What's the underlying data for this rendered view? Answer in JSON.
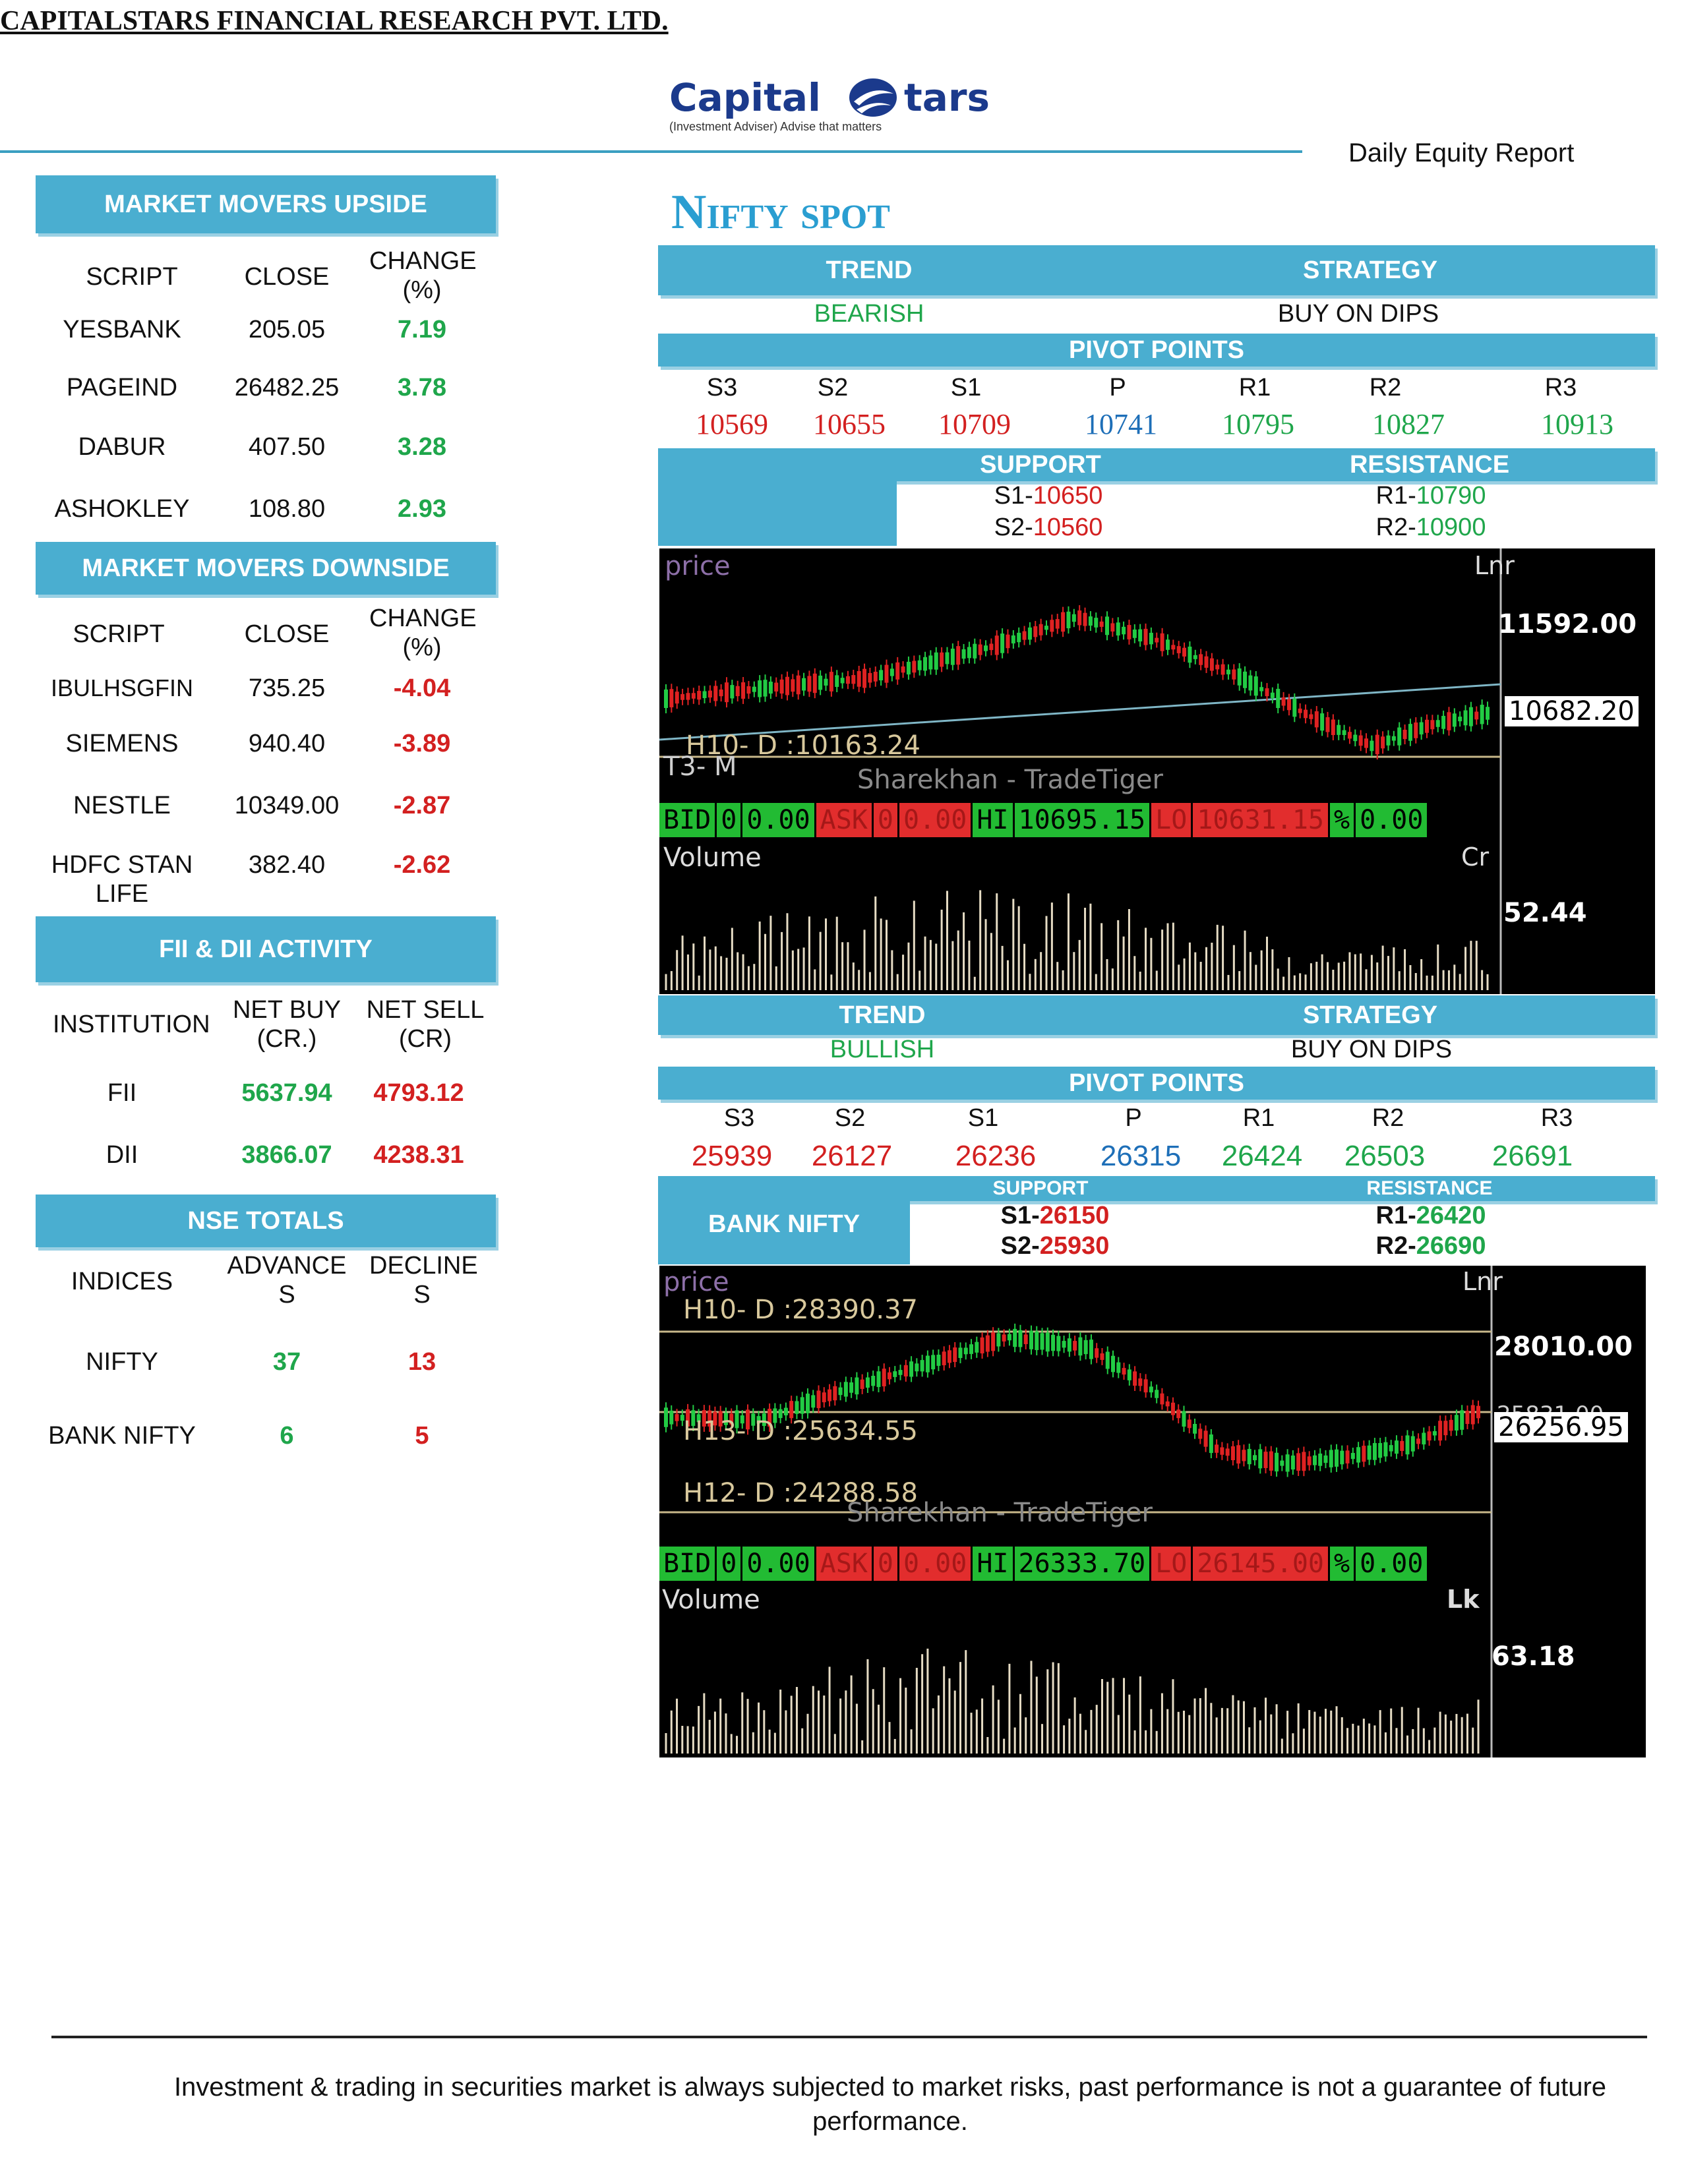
{
  "header": {
    "company": "CAPITALSTARS FINANCIAL RESEARCH PVT. LTD.",
    "logo_word_a": "Capital",
    "logo_word_b": "tars",
    "logo_tagline": "(Investment Adviser) Advise that matters",
    "report_title": "Daily Equity Report"
  },
  "left": {
    "upside": {
      "title": "MARKET MOVERS UPSIDE",
      "headers": [
        "SCRIPT",
        "CLOSE",
        "CHANGE (%)"
      ],
      "rows": [
        {
          "script": "YESBANK",
          "close": "205.05",
          "change": "7.19"
        },
        {
          "script": "PAGEIND",
          "close": "26482.25",
          "change": "3.78"
        },
        {
          "script": "DABUR",
          "close": "407.50",
          "change": "3.28"
        },
        {
          "script": "ASHOKLEY",
          "close": "108.80",
          "change": "2.93"
        }
      ]
    },
    "downside": {
      "title": "MARKET MOVERS DOWNSIDE",
      "headers": [
        "SCRIPT",
        "CLOSE",
        "CHANGE (%)"
      ],
      "rows": [
        {
          "script": "IBULHSGFIN",
          "close": "735.25",
          "change": "-4.04"
        },
        {
          "script": "SIEMENS",
          "close": "940.40",
          "change": "-3.89"
        },
        {
          "script": "NESTLE",
          "close": "10349.00",
          "change": "-2.87"
        },
        {
          "script": "HDFC STAN LIFE",
          "close": "382.40",
          "change": "-2.62"
        }
      ]
    },
    "fii": {
      "title": "FII & DII ACTIVITY",
      "headers": [
        "INSTITUTION",
        "NET BUY (CR.)",
        "NET SELL (CR)"
      ],
      "rows": [
        {
          "inst": "FII",
          "buy": "5637.94",
          "sell": "4793.12"
        },
        {
          "inst": "DII",
          "buy": "3866.07",
          "sell": "4238.31"
        }
      ]
    },
    "nse": {
      "title": "NSE TOTALS",
      "headers": [
        "INDICES",
        "ADVANCE S",
        "DECLINE S"
      ],
      "rows": [
        {
          "index": "NIFTY",
          "adv": "37",
          "dec": "13"
        },
        {
          "index": "BANK NIFTY",
          "adv": "6",
          "dec": "5"
        }
      ]
    }
  },
  "nifty": {
    "title": "Nifty spot",
    "trend_label": "TREND",
    "strategy_label": "STRATEGY",
    "trend": "BEARISH",
    "strategy": "BUY ON DIPS",
    "pivot_label": "PIVOT POINTS",
    "pivot_headers": [
      "S3",
      "S2",
      "S1",
      "P",
      "R1",
      "R2",
      "R3"
    ],
    "pivot_values": [
      "10569",
      "10655",
      "10709",
      "10741",
      "10795",
      "10827",
      "10913"
    ],
    "support_label": "SUPPORT",
    "resistance_label": "RESISTANCE",
    "s1_label": "S1-",
    "s1": "10650",
    "s2_label": "S2-",
    "s2": "10560",
    "r1_label": "R1-",
    "r1": "10790",
    "r2_label": "R2-",
    "r2": "10900",
    "chart": {
      "price_label": "price",
      "lnr": "Lnr",
      "h10": "H10- D :10163.24",
      "t3": "T3- M",
      "watermark": "Sharekhan - TradeTiger",
      "axis_top": "11592.00",
      "axis_last": "10682.20",
      "bid": [
        "BID",
        "0",
        "0.00"
      ],
      "ask": [
        "ASK",
        "0",
        "0.00"
      ],
      "hi_label": "HI",
      "hi": "10695.15",
      "lo_label": "LO",
      "lo": "10631.15",
      "pct_label": "%",
      "pct": "0.00",
      "volume_label": "Volume",
      "vol_unit": "Cr",
      "vol_axis": "52.44"
    }
  },
  "banknifty": {
    "trend_label": "TREND",
    "strategy_label": "STRATEGY",
    "trend": "BULLISH",
    "strategy": "BUY ON DIPS",
    "pivot_label": "PIVOT POINTS",
    "pivot_headers": [
      "S3",
      "S2",
      "S1",
      "P",
      "R1",
      "R2",
      "R3"
    ],
    "pivot_values": [
      "25939",
      "26127",
      "26236",
      "26315",
      "26424",
      "26503",
      "26691"
    ],
    "name": "BANK NIFTY",
    "support_label": "SUPPORT",
    "resistance_label": "RESISTANCE",
    "s1_label": "S1-",
    "s1": "26150",
    "s2_label": "S2-",
    "s2": "25930",
    "r1_label": "R1-",
    "r1": "26420",
    "r2_label": "R2-",
    "r2": "26690",
    "chart": {
      "price_label": "price",
      "lnr": "Lnr",
      "h10": "H10- D :28390.37",
      "h13": "H13- D :25634.55",
      "h12": "H12- D :24288.58",
      "watermark": "Sharekhan - TradeTiger",
      "axis_top": "28010.00",
      "axis_last": "26256.95",
      "axis_cut": "25831.00",
      "bid": [
        "BID",
        "0",
        "0.00"
      ],
      "ask": [
        "ASK",
        "0",
        "0.00"
      ],
      "hi_label": "HI",
      "hi": "26333.70",
      "lo_label": "LO",
      "lo": "26145.00",
      "pct_label": "%",
      "pct": "0.00",
      "volume_label": "Volume",
      "vol_unit": "Lk",
      "vol_axis": "63.18"
    }
  },
  "footer": {
    "disclaimer": "Investment & trading in securities market is always subjected to market risks, past performance is not a guarantee of future performance."
  }
}
